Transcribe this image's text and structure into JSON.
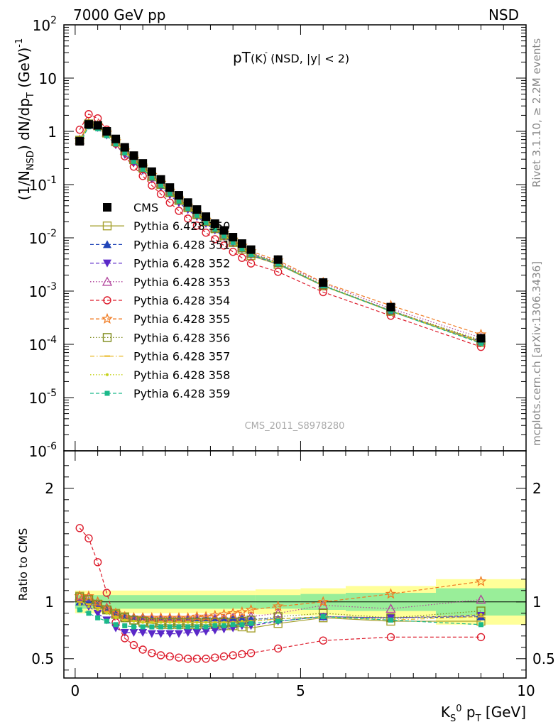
{
  "header": {
    "left": "7000 GeV pp",
    "right": "NSD"
  },
  "plot_title": {
    "main": "pT",
    "sub": "(K) (NSD, |y| < 2)",
    "sup": "-"
  },
  "side_labels": {
    "top": "Rivet 3.1.10, ≥ 2.2M events",
    "bottom": "mcplots.cern.ch [arXiv:1306.3436]"
  },
  "analysis_label": "CMS_2011_S8978280",
  "chart_data": [
    {
      "type": "scatter",
      "panel": "main",
      "yscale": "log",
      "ylabel": "(1/N_NSD) dN/dp_T (GeV)^-1",
      "ylim": [
        1e-06,
        100
      ],
      "xlim": [
        -0.25,
        10
      ],
      "yticks": [
        "10^2",
        "10",
        "1",
        "10^-1",
        "10^-2",
        "10^-3",
        "10^-4",
        "10^-5",
        "10^-6"
      ],
      "x": [
        0.1,
        0.3,
        0.5,
        0.7,
        0.9,
        1.1,
        1.3,
        1.5,
        1.7,
        1.9,
        2.1,
        2.3,
        2.5,
        2.7,
        2.9,
        3.1,
        3.3,
        3.5,
        3.7,
        3.9,
        4.5,
        5.5,
        7.0,
        9.0
      ],
      "series": [
        {
          "name": "CMS",
          "color": "#000000",
          "marker": "square-filled",
          "line": "none",
          "values": [
            0.65,
            1.35,
            1.3,
            1.0,
            0.72,
            0.5,
            0.35,
            0.25,
            0.175,
            0.125,
            0.088,
            0.063,
            0.046,
            0.034,
            0.025,
            0.0185,
            0.0138,
            0.0103,
            0.0078,
            0.006,
            0.0039,
            0.00145,
            0.0005,
            0.00013
          ]
        },
        {
          "name": "Pythia 6.428 350",
          "color": "#a6a130",
          "marker": "square-open",
          "line": "solid",
          "ratio": [
            1.05,
            1.02,
            0.98,
            0.93,
            0.9,
            0.87,
            0.84,
            0.82,
            0.81,
            0.8,
            0.8,
            0.8,
            0.8,
            0.8,
            0.8,
            0.8,
            0.79,
            0.79,
            0.78,
            0.77,
            0.81,
            0.86,
            0.83,
            0.83
          ]
        },
        {
          "name": "Pythia 6.428 351",
          "color": "#2145b8",
          "marker": "triangle-up-filled",
          "line": "dashed",
          "ratio": [
            1.0,
            1.0,
            0.97,
            0.93,
            0.9,
            0.88,
            0.87,
            0.87,
            0.86,
            0.86,
            0.86,
            0.86,
            0.86,
            0.86,
            0.86,
            0.86,
            0.86,
            0.86,
            0.85,
            0.85,
            0.85,
            0.87,
            0.86,
            0.87
          ]
        },
        {
          "name": "Pythia 6.428 352",
          "color": "#5a28c8",
          "marker": "triangle-down-filled",
          "line": "dashed",
          "ratio": [
            1.0,
            0.96,
            0.9,
            0.84,
            0.77,
            0.73,
            0.73,
            0.73,
            0.72,
            0.72,
            0.72,
            0.72,
            0.73,
            0.73,
            0.74,
            0.75,
            0.76,
            0.77,
            0.79,
            0.79,
            0.83,
            0.87,
            0.86,
            0.88
          ]
        },
        {
          "name": "Pythia 6.428 353",
          "color": "#b0409a",
          "marker": "triangle-up-open",
          "line": "dotted",
          "ratio": [
            1.05,
            1.04,
            1.0,
            0.95,
            0.9,
            0.87,
            0.86,
            0.85,
            0.85,
            0.85,
            0.85,
            0.85,
            0.85,
            0.85,
            0.85,
            0.85,
            0.85,
            0.86,
            0.86,
            0.87,
            0.9,
            0.97,
            0.94,
            1.02
          ]
        },
        {
          "name": "Pythia 6.428 354",
          "color": "#dd1c2c",
          "marker": "circle-open",
          "line": "dashed",
          "ratio": [
            1.65,
            1.56,
            1.35,
            1.08,
            0.82,
            0.68,
            0.62,
            0.58,
            0.55,
            0.53,
            0.52,
            0.51,
            0.5,
            0.5,
            0.5,
            0.51,
            0.52,
            0.53,
            0.54,
            0.55,
            0.59,
            0.66,
            0.69,
            0.69
          ]
        },
        {
          "name": "Pythia 6.428 355",
          "color": "#f07a20",
          "marker": "star",
          "line": "dashed",
          "ratio": [
            1.05,
            1.05,
            1.0,
            0.94,
            0.9,
            0.87,
            0.86,
            0.86,
            0.86,
            0.86,
            0.86,
            0.86,
            0.86,
            0.87,
            0.87,
            0.88,
            0.89,
            0.9,
            0.91,
            0.93,
            0.96,
            1.0,
            1.07,
            1.18
          ]
        },
        {
          "name": "Pythia 6.428 356",
          "color": "#7f8b1c",
          "marker": "square-open",
          "line": "dotted",
          "ratio": [
            1.04,
            1.02,
            0.98,
            0.93,
            0.89,
            0.86,
            0.84,
            0.83,
            0.82,
            0.82,
            0.82,
            0.82,
            0.82,
            0.82,
            0.82,
            0.82,
            0.82,
            0.82,
            0.83,
            0.84,
            0.87,
            0.9,
            0.86,
            0.92
          ]
        },
        {
          "name": "Pythia 6.428 357",
          "color": "#e8b61e",
          "marker": "dash",
          "line": "dashdot",
          "ratio": [
            1.0,
            0.98,
            0.95,
            0.91,
            0.87,
            0.84,
            0.83,
            0.82,
            0.82,
            0.82,
            0.82,
            0.82,
            0.82,
            0.82,
            0.82,
            0.82,
            0.82,
            0.82,
            0.82,
            0.83,
            0.85,
            0.87,
            0.84,
            0.87
          ]
        },
        {
          "name": "Pythia 6.428 358",
          "color": "#c5d21a",
          "marker": "dot",
          "line": "dotted",
          "ratio": [
            0.98,
            0.96,
            0.93,
            0.9,
            0.86,
            0.84,
            0.83,
            0.82,
            0.82,
            0.82,
            0.82,
            0.82,
            0.82,
            0.82,
            0.82,
            0.82,
            0.82,
            0.82,
            0.83,
            0.83,
            0.85,
            0.87,
            0.85,
            0.89
          ]
        },
        {
          "name": "Pythia 6.428 359",
          "color": "#1bb98a",
          "marker": "square-filled-small",
          "line": "dashed",
          "ratio": [
            0.93,
            0.9,
            0.86,
            0.83,
            0.8,
            0.79,
            0.78,
            0.78,
            0.78,
            0.78,
            0.78,
            0.78,
            0.78,
            0.78,
            0.78,
            0.79,
            0.79,
            0.8,
            0.8,
            0.81,
            0.83,
            0.87,
            0.84,
            0.8
          ]
        }
      ]
    },
    {
      "type": "scatter",
      "panel": "ratio",
      "ylabel": "Ratio to CMS",
      "ylim": [
        0.33,
        2.33
      ],
      "xlim": [
        -0.25,
        10
      ],
      "yticks": [
        0.5,
        1,
        2
      ],
      "xticks": [
        0,
        5,
        10
      ],
      "xlabel": "K_S^0 p_T [GeV]",
      "reference_line": 1,
      "bands": {
        "x_edges": [
          0.0,
          4.0,
          5.0,
          6.0,
          8.0,
          10.0
        ],
        "stat_half": [
          0.06,
          0.06,
          0.07,
          0.08,
          0.12
        ],
        "total_half": [
          0.1,
          0.11,
          0.12,
          0.14,
          0.2
        ],
        "stat_color": "#99ee99",
        "total_color": "#ffff99"
      }
    }
  ]
}
